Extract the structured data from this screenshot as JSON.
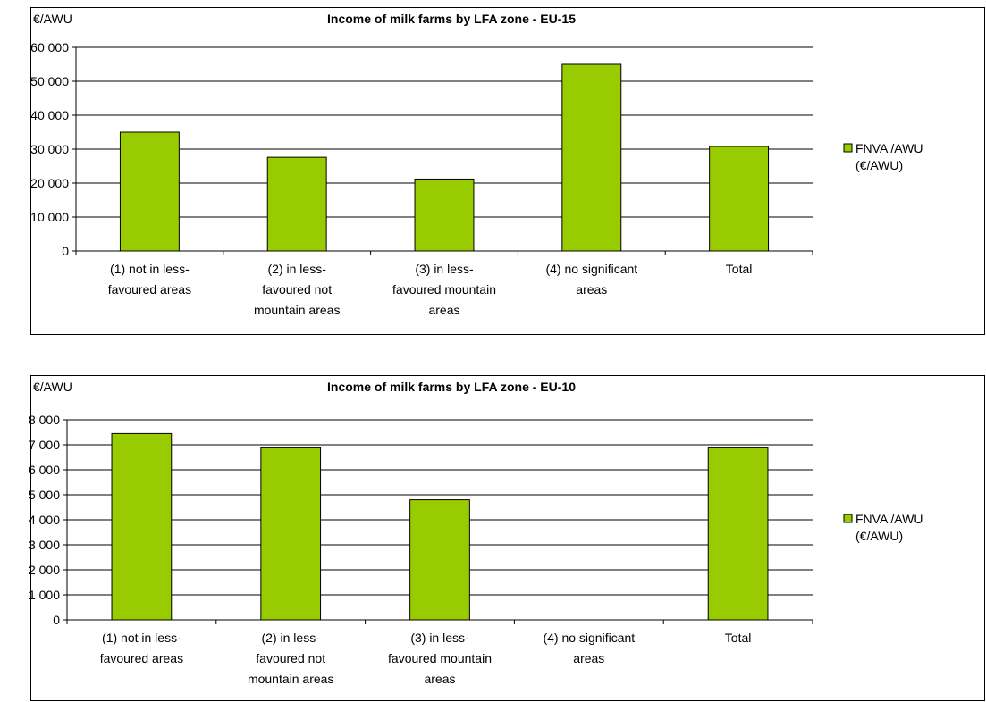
{
  "chart_data": [
    {
      "type": "bar",
      "title": "Income of milk farms by LFA zone - EU-15",
      "ylabel": "€/AWU",
      "categories": [
        [
          "(1) not in less-",
          "favoured areas"
        ],
        [
          "(2) in less-",
          "favoured not",
          "mountain areas"
        ],
        [
          "(3) in less-",
          "favoured mountain",
          "areas"
        ],
        [
          "(4) no significant",
          "areas"
        ],
        [
          "Total"
        ]
      ],
      "series": [
        {
          "name": "FNVA /AWU (€/AWU)",
          "values": [
            35000,
            27600,
            21200,
            55000,
            30800
          ]
        }
      ],
      "ylim": [
        0,
        60000
      ],
      "yticks": [
        0,
        10000,
        20000,
        30000,
        40000,
        50000,
        60000
      ],
      "ytick_labels": [
        "0",
        "10 000",
        "20 000",
        "30 000",
        "40 000",
        "50 000",
        "60 000"
      ],
      "grid": true,
      "legend": [
        "FNVA /AWU",
        "(€/AWU)"
      ],
      "legend_position": "right",
      "bar_color": "#99CC00"
    },
    {
      "type": "bar",
      "title": "Income of milk farms by LFA zone - EU-10",
      "ylabel": "€/AWU",
      "categories": [
        [
          "(1) not in less-",
          "favoured areas"
        ],
        [
          "(2) in less-",
          "favoured not",
          "mountain areas"
        ],
        [
          "(3) in less-",
          "favoured mountain",
          "areas"
        ],
        [
          "(4) no significant",
          "areas"
        ],
        [
          "Total"
        ]
      ],
      "series": [
        {
          "name": "FNVA /AWU (€/AWU)",
          "values": [
            7450,
            6880,
            4800,
            null,
            6880
          ]
        }
      ],
      "ylim": [
        0,
        8000
      ],
      "yticks": [
        0,
        1000,
        2000,
        3000,
        4000,
        5000,
        6000,
        7000,
        8000
      ],
      "ytick_labels": [
        "0",
        "1 000",
        "2 000",
        "3 000",
        "4 000",
        "5 000",
        "6 000",
        "7 000",
        "8 000"
      ],
      "grid": true,
      "legend": [
        "FNVA /AWU",
        "(€/AWU)"
      ],
      "legend_position": "right",
      "bar_color": "#99CC00"
    }
  ]
}
